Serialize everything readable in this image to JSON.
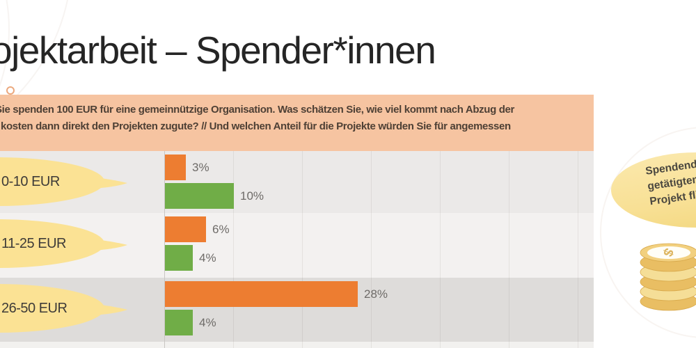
{
  "slide_title": "ojektarbeit – Spender*innen",
  "question_box": {
    "line1": "Sie spenden 100 EUR für eine gemeinnützige Organisation. Was schätzen Sie, wie viel kommt nach Abzug der",
    "line2": "kosten dann direkt den Projekten zugute? // Und welchen Anteil für die Projekte würden Sie für angemessen"
  },
  "bubble": {
    "line1": "Spendende",
    "line2": "getätigten S",
    "line3": "Projekt fließ"
  },
  "icons": {
    "coin_stack": "coin-stack-icon"
  },
  "colors": {
    "accent_orange": "#ED7D31",
    "accent_green": "#70AD47",
    "question_box_bg": "#F6C4A1",
    "callout_yellow": "#FBE294",
    "bubble_yellow": "#F8E095",
    "coin_gold": "#E9BE63"
  },
  "chart_data": {
    "type": "bar",
    "orientation": "horizontal",
    "categories": [
      "0-10 EUR",
      "11-25 EUR",
      "26-50 EUR"
    ],
    "series": [
      {
        "name": "orange",
        "color": "#ED7D31",
        "values": [
          3,
          6,
          28
        ]
      },
      {
        "name": "green",
        "color": "#70AD47",
        "values": [
          10,
          4,
          4
        ]
      }
    ],
    "data_label_format": "percent",
    "xlim": [
      0,
      63
    ],
    "gridline_step": 10,
    "gridlines": true,
    "legend_position": "none",
    "category_label_style": "yellow-callout"
  }
}
